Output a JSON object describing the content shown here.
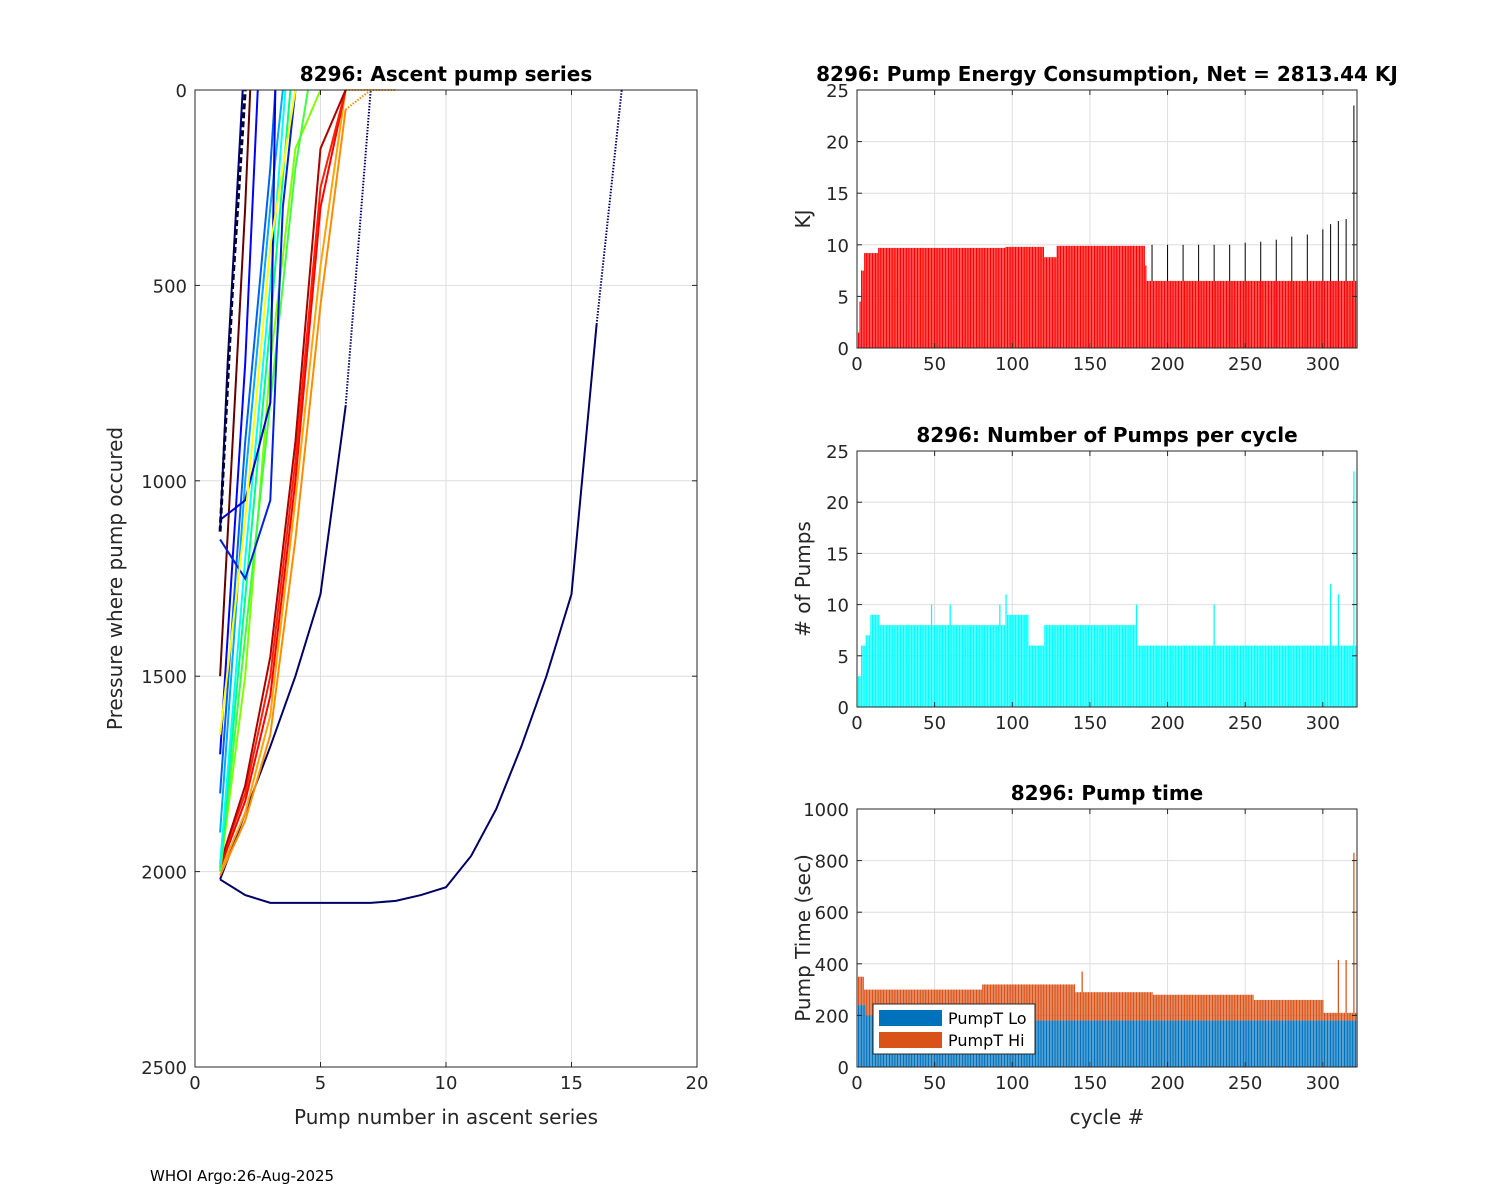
{
  "footer": "WHOI Argo:26-Aug-2025",
  "chart_data": [
    {
      "type": "line",
      "id": "ascent",
      "title": "8296: Ascent pump series",
      "xlabel": "Pump number in ascent series",
      "ylabel": "Pressure where pump occured",
      "xlim": [
        0,
        20
      ],
      "ylim": [
        0,
        2500
      ],
      "y_reversed": true,
      "grid": true,
      "xticks": [
        0,
        5,
        10,
        15,
        20
      ],
      "yticks": [
        0,
        500,
        1000,
        1500,
        2000,
        2500
      ],
      "series": [
        {
          "color": "#000066",
          "points": [
            [
              1,
              2020
            ],
            [
              2,
              2060
            ],
            [
              3,
              2080
            ],
            [
              5,
              2080
            ],
            [
              7,
              2080
            ],
            [
              8,
              2075
            ],
            [
              9,
              2060
            ],
            [
              10,
              2040
            ],
            [
              11,
              1960
            ],
            [
              12,
              1840
            ],
            [
              13,
              1680
            ],
            [
              14,
              1500
            ],
            [
              15,
              1290
            ],
            [
              16,
              600
            ]
          ],
          "dotted_to": [
            17,
            0
          ]
        },
        {
          "color": "#000066",
          "points": [
            [
              1,
              2020
            ],
            [
              2,
              1850
            ],
            [
              3,
              1680
            ],
            [
              4,
              1500
            ],
            [
              5,
              1290
            ],
            [
              6,
              810
            ]
          ],
          "dotted_to": [
            7,
            0
          ]
        },
        {
          "color": "#ffa500",
          "points": [
            [
              1,
              2000
            ],
            [
              2,
              1850
            ],
            [
              3,
              1600
            ],
            [
              4,
              1050
            ],
            [
              5,
              450
            ],
            [
              6,
              0
            ]
          ],
          "dotted_to": [
            8,
            0
          ]
        },
        {
          "color": "#ff8c00",
          "points": [
            [
              1,
              2010
            ],
            [
              2,
              1870
            ],
            [
              3,
              1650
            ],
            [
              4,
              1150
            ],
            [
              5,
              550
            ],
            [
              6,
              50
            ]
          ],
          "dotted_to": [
            7,
            0
          ]
        },
        {
          "color": "#ff0000",
          "points": [
            [
              1,
              1990
            ],
            [
              2,
              1820
            ],
            [
              3,
              1550
            ],
            [
              4,
              1000
            ],
            [
              5,
              300
            ],
            [
              6,
              0
            ]
          ]
        },
        {
          "color": "#ff2000",
          "points": [
            [
              1,
              1980
            ],
            [
              2,
              1800
            ],
            [
              3,
              1500
            ],
            [
              4,
              950
            ],
            [
              5,
              250
            ],
            [
              6,
              0
            ]
          ]
        },
        {
          "color": "#aa0000",
          "points": [
            [
              1,
              1980
            ],
            [
              2,
              1780
            ],
            [
              3,
              1450
            ],
            [
              4,
              900
            ],
            [
              5,
              150
            ],
            [
              6,
              0
            ]
          ]
        },
        {
          "color": "#660000",
          "points": [
            [
              1,
              1500
            ],
            [
              2,
              300
            ],
            [
              2.2,
              0
            ]
          ]
        },
        {
          "color": "#80ff00",
          "points": [
            [
              1,
              2000
            ],
            [
              2,
              1500
            ],
            [
              3,
              700
            ],
            [
              4,
              150
            ],
            [
              5,
              0
            ]
          ]
        },
        {
          "color": "#40ff40",
          "points": [
            [
              1,
              2000
            ],
            [
              2,
              1400
            ],
            [
              3,
              800
            ],
            [
              4,
              200
            ],
            [
              4.5,
              0
            ]
          ]
        },
        {
          "color": "#00ff80",
          "points": [
            [
              1,
              1990
            ],
            [
              2,
              1300
            ],
            [
              3,
              600
            ],
            [
              3.8,
              0
            ]
          ]
        },
        {
          "color": "#00ffff",
          "points": [
            [
              1,
              1980
            ],
            [
              2,
              1200
            ],
            [
              3,
              500
            ],
            [
              3.6,
              0
            ]
          ]
        },
        {
          "color": "#00aaff",
          "points": [
            [
              1,
              1900
            ],
            [
              2,
              1000
            ],
            [
              3,
              300
            ],
            [
              3.5,
              0
            ]
          ]
        },
        {
          "color": "#0060ff",
          "points": [
            [
              1,
              1800
            ],
            [
              2,
              900
            ],
            [
              3,
              200
            ],
            [
              3.2,
              0
            ]
          ]
        },
        {
          "color": "#0000ff",
          "points": [
            [
              1,
              1700
            ],
            [
              2,
              700
            ],
            [
              2.5,
              0
            ]
          ]
        },
        {
          "color": "#0020dd",
          "points": [
            [
              1,
              1150
            ],
            [
              2,
              1250
            ],
            [
              3,
              1050
            ],
            [
              3.5,
              300
            ],
            [
              4,
              0
            ]
          ]
        },
        {
          "color": "#0000cc",
          "points": [
            [
              1,
              1100
            ],
            [
              2,
              1050
            ],
            [
              3,
              800
            ],
            [
              3.2,
              0
            ]
          ]
        },
        {
          "color": "#000080",
          "points": [
            [
              1,
              1130
            ],
            [
              1.3,
              700
            ],
            [
              1.9,
              0
            ]
          ]
        },
        {
          "color": "#000033",
          "points": [
            [
              1,
              1130
            ],
            [
              1.5,
              500
            ],
            [
              2,
              0
            ]
          ],
          "dashed": true
        },
        {
          "color": "#ffff00",
          "points": [
            [
              1,
              1650
            ],
            [
              2,
              1100
            ],
            [
              3,
              400
            ],
            [
              4,
              0
            ]
          ]
        }
      ]
    },
    {
      "type": "bar",
      "id": "energy",
      "title": "8296: Pump Energy Consumption,  Net = 2813.44 KJ",
      "ylabel": "KJ",
      "xlabel": "",
      "xlim": [
        0,
        322
      ],
      "ylim": [
        0,
        25
      ],
      "xticks": [
        0,
        50,
        100,
        150,
        200,
        250,
        300
      ],
      "yticks": [
        0,
        5,
        10,
        15,
        20,
        25
      ],
      "grid": true,
      "color": "#ff0000",
      "segments": [
        [
          1,
          1,
          1.5
        ],
        [
          2,
          2,
          4.5
        ],
        [
          3,
          4,
          7.5
        ],
        [
          5,
          13,
          9.2
        ],
        [
          14,
          95,
          9.7
        ],
        [
          96,
          120,
          9.8
        ],
        [
          121,
          128,
          8.8
        ],
        [
          129,
          185,
          9.9
        ],
        [
          186,
          186,
          8
        ],
        [
          187,
          322,
          6.5
        ]
      ],
      "spikes_color": "#000000",
      "spikes": [
        [
          190,
          10
        ],
        [
          200,
          10
        ],
        [
          210,
          10
        ],
        [
          220,
          10
        ],
        [
          230,
          10
        ],
        [
          240,
          10
        ],
        [
          250,
          10.2
        ],
        [
          260,
          10.3
        ],
        [
          270,
          10.5
        ],
        [
          280,
          10.8
        ],
        [
          290,
          11
        ],
        [
          300,
          11.5
        ],
        [
          305,
          12
        ],
        [
          310,
          12.3
        ],
        [
          315,
          12.5
        ],
        [
          320,
          23.5
        ]
      ]
    },
    {
      "type": "bar",
      "id": "pumps",
      "title": "8296: Number of Pumps per cycle",
      "ylabel": "# of Pumps",
      "xlabel": "",
      "xlim": [
        0,
        322
      ],
      "ylim": [
        0,
        25
      ],
      "xticks": [
        0,
        50,
        100,
        150,
        200,
        250,
        300
      ],
      "yticks": [
        0,
        5,
        10,
        15,
        20,
        25
      ],
      "grid": true,
      "color": "#00ffff",
      "segments": [
        [
          1,
          2,
          3
        ],
        [
          3,
          5,
          6
        ],
        [
          6,
          8,
          7
        ],
        [
          9,
          14,
          9
        ],
        [
          15,
          47,
          8
        ],
        [
          48,
          95,
          8
        ],
        [
          96,
          110,
          9
        ],
        [
          111,
          120,
          6
        ],
        [
          121,
          180,
          8
        ],
        [
          181,
          322,
          6
        ]
      ],
      "spikes": [
        [
          48,
          10
        ],
        [
          60,
          10
        ],
        [
          92,
          10
        ],
        [
          96,
          11
        ],
        [
          180,
          10
        ],
        [
          230,
          10
        ],
        [
          305,
          12
        ],
        [
          310,
          11
        ],
        [
          320,
          23
        ]
      ]
    },
    {
      "type": "stacked_bar",
      "id": "pumptime",
      "title": "8296: Pump time",
      "ylabel": "Pump Time (sec)",
      "xlabel": "cycle #",
      "xlim": [
        0,
        322
      ],
      "ylim": [
        0,
        1000
      ],
      "xticks": [
        0,
        50,
        100,
        150,
        200,
        250,
        300
      ],
      "yticks": [
        0,
        200,
        400,
        600,
        800,
        1000
      ],
      "grid": true,
      "legend": {
        "location": "bottom-left",
        "entries": [
          "PumpT Lo",
          "PumpT Hi"
        ]
      },
      "series": [
        {
          "name": "PumpT Lo",
          "color": "#0072bd",
          "segments": [
            [
              1,
              5,
              240
            ],
            [
              6,
              70,
              200
            ],
            [
              71,
              322,
              180
            ]
          ]
        },
        {
          "name": "PumpT Hi",
          "color": "#d95319",
          "total_segments": [
            [
              1,
              4,
              350
            ],
            [
              5,
              80,
              300
            ],
            [
              81,
              140,
              320
            ],
            [
              141,
              190,
              290
            ],
            [
              191,
              255,
              280
            ],
            [
              256,
              300,
              260
            ],
            [
              301,
              322,
              210
            ]
          ],
          "total_spikes": [
            [
              145,
              370
            ],
            [
              310,
              415
            ],
            [
              315,
              415
            ],
            [
              320,
              830
            ]
          ]
        }
      ]
    }
  ]
}
